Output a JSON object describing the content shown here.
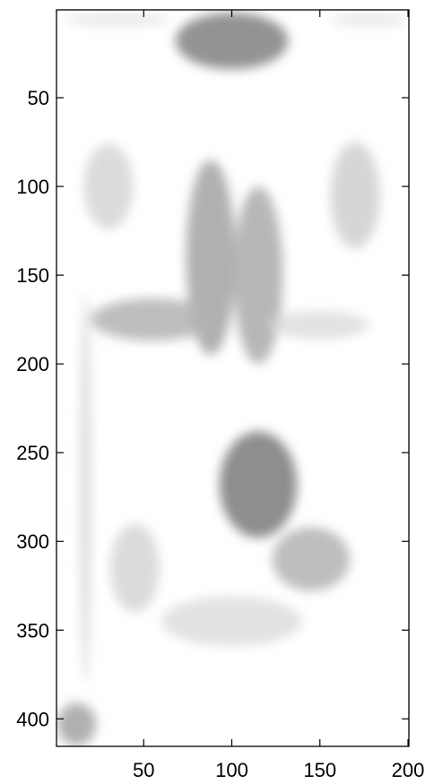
{
  "chart_data": {
    "type": "heatmap",
    "title": "",
    "xlabel": "",
    "ylabel": "",
    "xlim": [
      1,
      200
    ],
    "ylim": [
      1,
      415
    ],
    "y_reversed": true,
    "colormap": "gray (reversed: higher intensity = darker)",
    "grid": false,
    "legend": "none",
    "x_ticks": [
      50,
      100,
      150,
      200
    ],
    "y_ticks": [
      50,
      100,
      150,
      200,
      250,
      300,
      350,
      400
    ],
    "x_tick_labels": [
      "50",
      "100",
      "150",
      "200"
    ],
    "y_tick_labels": [
      "50",
      "100",
      "150",
      "200",
      "250",
      "300",
      "350",
      "400"
    ],
    "regions": [
      {
        "name": "top blob",
        "cx": 100,
        "cy": 18,
        "rx": 32,
        "ry": 16,
        "intensity": 0.75
      },
      {
        "name": "top band left",
        "cx": 35,
        "cy": 6,
        "rx": 30,
        "ry": 4,
        "intensity": 0.15
      },
      {
        "name": "top band right",
        "cx": 178,
        "cy": 6,
        "rx": 22,
        "ry": 4,
        "intensity": 0.15
      },
      {
        "name": "central column left",
        "cx": 88,
        "cy": 140,
        "rx": 14,
        "ry": 55,
        "intensity": 0.55
      },
      {
        "name": "central column right",
        "cx": 115,
        "cy": 150,
        "rx": 14,
        "ry": 50,
        "intensity": 0.5
      },
      {
        "name": "horizontal arm",
        "cx": 55,
        "cy": 175,
        "rx": 35,
        "ry": 12,
        "intensity": 0.45
      },
      {
        "name": "arm right extension",
        "cx": 150,
        "cy": 178,
        "rx": 28,
        "ry": 8,
        "intensity": 0.2
      },
      {
        "name": "diagonal streaks left",
        "cx": 30,
        "cy": 100,
        "rx": 14,
        "ry": 24,
        "intensity": 0.25
      },
      {
        "name": "diagonal streaks right",
        "cx": 170,
        "cy": 105,
        "rx": 14,
        "ry": 30,
        "intensity": 0.28
      },
      {
        "name": "central lower blob",
        "cx": 115,
        "cy": 268,
        "rx": 22,
        "ry": 30,
        "intensity": 0.78
      },
      {
        "name": "lower right arm",
        "cx": 145,
        "cy": 310,
        "rx": 22,
        "ry": 18,
        "intensity": 0.45
      },
      {
        "name": "lower left patch",
        "cx": 45,
        "cy": 315,
        "rx": 14,
        "ry": 25,
        "intensity": 0.25
      },
      {
        "name": "bottom center patches",
        "cx": 100,
        "cy": 345,
        "rx": 40,
        "ry": 14,
        "intensity": 0.2
      },
      {
        "name": "left vertical stripe",
        "cx": 17,
        "cy": 270,
        "rx": 3,
        "ry": 110,
        "intensity": 0.25
      },
      {
        "name": "bottom left corner",
        "cx": 12,
        "cy": 403,
        "rx": 11,
        "ry": 12,
        "intensity": 0.55
      }
    ]
  }
}
